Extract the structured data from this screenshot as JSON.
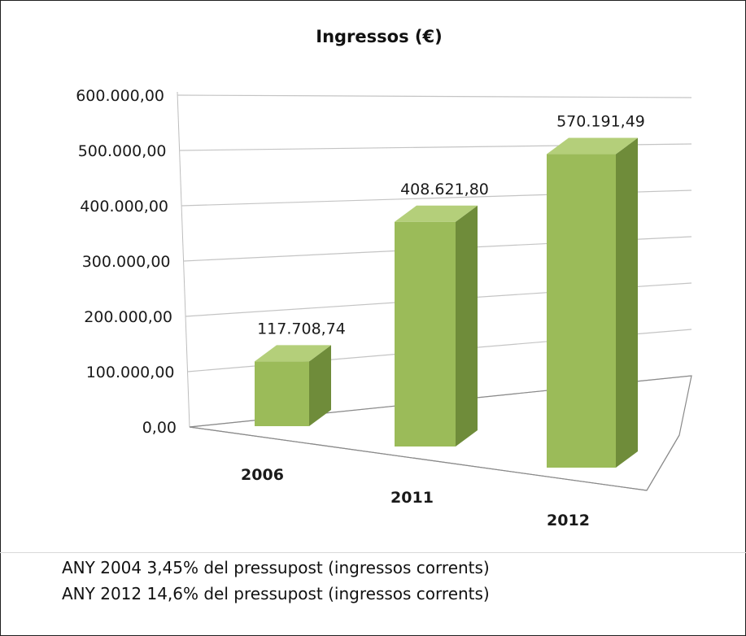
{
  "chart_data": {
    "type": "bar",
    "title": "Ingressos (€)",
    "categories": [
      "2006",
      "2011",
      "2012"
    ],
    "values": [
      117708.74,
      408621.8,
      570191.49
    ],
    "data_labels": [
      "117.708,74",
      "408.621,80",
      "570.191,49"
    ],
    "y_ticks": [
      "0,00",
      "100.000,00",
      "200.000,00",
      "300.000,00",
      "400.000,00",
      "500.000,00",
      "600.000,00"
    ],
    "ylim": [
      0,
      600000
    ],
    "grid": true,
    "style": "3d-column",
    "colors": {
      "bar_front": "#9bbb59",
      "bar_side": "#6f8c3a",
      "bar_top": "#b4cf7a"
    }
  },
  "notes": [
    "ANY 2004  3,45% del pressupost (ingressos corrents)",
    "ANY 2012  14,6% del pressupost (ingressos corrents)"
  ]
}
